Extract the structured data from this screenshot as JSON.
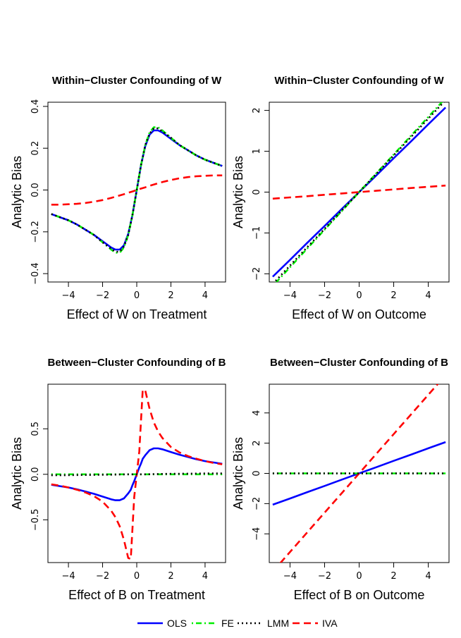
{
  "legend": {
    "position": "bottom",
    "entries": [
      {
        "label": "OLS",
        "color": "#0000ff",
        "dash": "solid"
      },
      {
        "label": "FE",
        "color": "#00ee00",
        "dash": "dotdash"
      },
      {
        "label": "LMM",
        "color": "#000000",
        "dash": "dotted"
      },
      {
        "label": "IVA",
        "color": "#ff0000",
        "dash": "dashed"
      }
    ]
  },
  "chart_data": [
    {
      "type": "line",
      "title": "Within−Cluster Confounding of W",
      "xlabel": "Effect of W on Treatment",
      "ylabel": "Analytic Bias",
      "xlim": [
        -5.2,
        5.2
      ],
      "ylim": [
        -0.44,
        0.42
      ],
      "xticks": [
        -4,
        -2,
        0,
        2,
        4
      ],
      "xticklabels": [
        "−4",
        "−2",
        "0",
        "2",
        "4"
      ],
      "yticks": [
        -0.4,
        -0.2,
        0.0,
        0.2,
        0.4
      ],
      "yticklabels": [
        "−0.4",
        "−0.2",
        "0.0",
        "0.2",
        "0.4"
      ],
      "grid": false,
      "x": [
        -5,
        -4.5,
        -4,
        -3.5,
        -3,
        -2.5,
        -2,
        -1.5,
        -1.25,
        -1,
        -0.75,
        -0.5,
        -0.25,
        0,
        0.25,
        0.5,
        0.75,
        1,
        1.25,
        1.5,
        2,
        2.5,
        3,
        3.5,
        4,
        4.5,
        5
      ],
      "series": [
        {
          "name": "OLS",
          "values": [
            -0.115,
            -0.13,
            -0.145,
            -0.165,
            -0.19,
            -0.215,
            -0.245,
            -0.275,
            -0.285,
            -0.285,
            -0.265,
            -0.21,
            -0.12,
            0.0,
            0.12,
            0.21,
            0.265,
            0.285,
            0.285,
            0.275,
            0.245,
            0.215,
            0.19,
            0.165,
            0.145,
            0.13,
            0.115
          ]
        },
        {
          "name": "FE",
          "values": [
            -0.115,
            -0.13,
            -0.145,
            -0.165,
            -0.19,
            -0.215,
            -0.25,
            -0.285,
            -0.3,
            -0.3,
            -0.275,
            -0.215,
            -0.12,
            0.0,
            0.12,
            0.215,
            0.275,
            0.3,
            0.3,
            0.285,
            0.25,
            0.215,
            0.19,
            0.165,
            0.145,
            0.13,
            0.115
          ]
        },
        {
          "name": "LMM",
          "values": [
            -0.115,
            -0.13,
            -0.145,
            -0.165,
            -0.19,
            -0.215,
            -0.25,
            -0.28,
            -0.295,
            -0.295,
            -0.27,
            -0.215,
            -0.12,
            0.0,
            0.12,
            0.215,
            0.27,
            0.295,
            0.295,
            0.28,
            0.25,
            0.215,
            0.19,
            0.165,
            0.145,
            0.13,
            0.115
          ]
        },
        {
          "name": "IVA",
          "values": [
            -0.07,
            -0.07,
            -0.068,
            -0.066,
            -0.062,
            -0.056,
            -0.048,
            -0.038,
            -0.032,
            -0.026,
            -0.02,
            -0.013,
            -0.007,
            0.0,
            0.007,
            0.013,
            0.02,
            0.026,
            0.032,
            0.038,
            0.048,
            0.056,
            0.062,
            0.066,
            0.068,
            0.07,
            0.07
          ]
        }
      ]
    },
    {
      "type": "line",
      "title": "Within−Cluster Confounding of W",
      "xlabel": "Effect of W on Outcome",
      "ylabel": "Analytic Bias",
      "xlim": [
        -5.2,
        5.2
      ],
      "ylim": [
        -2.2,
        2.2
      ],
      "xticks": [
        -4,
        -2,
        0,
        2,
        4
      ],
      "xticklabels": [
        "−4",
        "−2",
        "0",
        "2",
        "4"
      ],
      "yticks": [
        -2,
        -1,
        0,
        1,
        2
      ],
      "yticklabels": [
        "−2",
        "−1",
        "0",
        "1",
        "2"
      ],
      "grid": false,
      "x": [
        -5,
        -4,
        -3,
        -2,
        -1,
        0,
        1,
        2,
        3,
        4,
        5
      ],
      "series": [
        {
          "name": "OLS",
          "values": [
            -2.07,
            -1.66,
            -1.24,
            -0.83,
            -0.41,
            0.0,
            0.41,
            0.83,
            1.24,
            1.66,
            2.07
          ]
        },
        {
          "name": "FE",
          "values": [
            -2.3,
            -1.84,
            -1.38,
            -0.92,
            -0.46,
            0.0,
            0.46,
            0.92,
            1.38,
            1.84,
            2.3
          ]
        },
        {
          "name": "LMM",
          "values": [
            -2.25,
            -1.8,
            -1.35,
            -0.9,
            -0.45,
            0.0,
            0.45,
            0.9,
            1.35,
            1.8,
            2.25
          ]
        },
        {
          "name": "IVA",
          "values": [
            -0.16,
            -0.13,
            -0.1,
            -0.065,
            -0.032,
            0.0,
            0.032,
            0.065,
            0.1,
            0.13,
            0.16
          ]
        }
      ]
    },
    {
      "type": "line",
      "title": "Between−Cluster Confounding of B",
      "xlabel": "Effect of B on Treatment",
      "ylabel": "Analytic Bias",
      "xlim": [
        -5.2,
        5.2
      ],
      "ylim": [
        -0.97,
        0.99
      ],
      "xticks": [
        -4,
        -2,
        0,
        2,
        4
      ],
      "xticklabels": [
        "−4",
        "−2",
        "0",
        "2",
        "4"
      ],
      "yticks": [
        -0.5,
        0.0,
        0.5
      ],
      "yticklabels": [
        "−0.5",
        "0.0",
        "0.5"
      ],
      "grid": false,
      "x": [
        -5,
        -4.5,
        -4,
        -3.5,
        -3,
        -2.5,
        -2,
        -1.5,
        -1.25,
        -1,
        -0.75,
        -0.5,
        -0.35,
        -0.25,
        -0.15,
        0,
        0.15,
        0.25,
        0.35,
        0.5,
        0.75,
        1,
        1.25,
        1.5,
        2,
        2.5,
        3,
        3.5,
        4,
        4.5,
        5
      ],
      "series": [
        {
          "name": "OLS",
          "values": [
            -0.115,
            -0.13,
            -0.145,
            -0.165,
            -0.19,
            -0.215,
            -0.245,
            -0.275,
            -0.285,
            -0.285,
            -0.265,
            -0.21,
            -0.17,
            -0.12,
            -0.075,
            0.0,
            0.075,
            0.12,
            0.17,
            0.21,
            0.265,
            0.285,
            0.285,
            0.275,
            0.245,
            0.215,
            0.19,
            0.165,
            0.145,
            0.13,
            0.115
          ]
        },
        {
          "name": "FE",
          "values": [
            0.0,
            0.0,
            0.0,
            0.0,
            0.0,
            0.0,
            0.0,
            0.0,
            0.0,
            0.0,
            0.0,
            0.0,
            0.0,
            0.0,
            0.0,
            0.0,
            0.0,
            0.0,
            0.0,
            0.0,
            0.0,
            0.0,
            0.0,
            0.0,
            0.0,
            0.0,
            0.0,
            0.0,
            0.0,
            0.0,
            0.0
          ]
        },
        {
          "name": "LMM",
          "values": [
            -0.01,
            -0.01,
            -0.009,
            -0.008,
            -0.007,
            -0.006,
            -0.005,
            -0.004,
            -0.003,
            -0.002,
            -0.001,
            0.0,
            0.0,
            0.0,
            0.0,
            0.0,
            0.0,
            0.0,
            0.0,
            0.0,
            0.001,
            0.002,
            0.003,
            0.004,
            0.005,
            0.006,
            0.007,
            0.008,
            0.009,
            0.01,
            0.01
          ]
        },
        {
          "name": "IVA",
          "values": [
            -0.11,
            -0.125,
            -0.145,
            -0.17,
            -0.2,
            -0.24,
            -0.3,
            -0.4,
            -0.47,
            -0.57,
            -0.72,
            -0.92,
            -0.93,
            -0.6,
            -0.25,
            0.0,
            0.25,
            0.6,
            0.93,
            0.92,
            0.72,
            0.57,
            0.47,
            0.4,
            0.3,
            0.24,
            0.2,
            0.17,
            0.145,
            0.125,
            0.11
          ]
        }
      ]
    },
    {
      "type": "line",
      "title": "Between−Cluster Confounding of B",
      "xlabel": "Effect of B on Outcome",
      "ylabel": "Analytic Bias",
      "xlim": [
        -5.2,
        5.2
      ],
      "ylim": [
        -5.9,
        5.9
      ],
      "xticks": [
        -4,
        -2,
        0,
        2,
        4
      ],
      "xticklabels": [
        "−4",
        "−2",
        "0",
        "2",
        "4"
      ],
      "yticks": [
        -4,
        -2,
        0,
        2,
        4
      ],
      "yticklabels": [
        "−4",
        "−2",
        "0",
        "2",
        "4"
      ],
      "grid": false,
      "x": [
        -5,
        -4,
        -3,
        -2,
        -1,
        0,
        1,
        2,
        3,
        4,
        5
      ],
      "series": [
        {
          "name": "OLS",
          "values": [
            -2.07,
            -1.66,
            -1.24,
            -0.83,
            -0.41,
            0.0,
            0.41,
            0.83,
            1.24,
            1.66,
            2.07
          ]
        },
        {
          "name": "FE",
          "values": [
            0,
            0,
            0,
            0,
            0,
            0,
            0,
            0,
            0,
            0,
            0
          ]
        },
        {
          "name": "LMM",
          "values": [
            0,
            0,
            0,
            0,
            0,
            0,
            0,
            0,
            0,
            0,
            0
          ]
        },
        {
          "name": "IVA",
          "values": [
            -6.5,
            -5.2,
            -3.9,
            -2.6,
            -1.3,
            0.0,
            1.3,
            2.6,
            3.9,
            5.2,
            6.5
          ]
        }
      ]
    }
  ]
}
